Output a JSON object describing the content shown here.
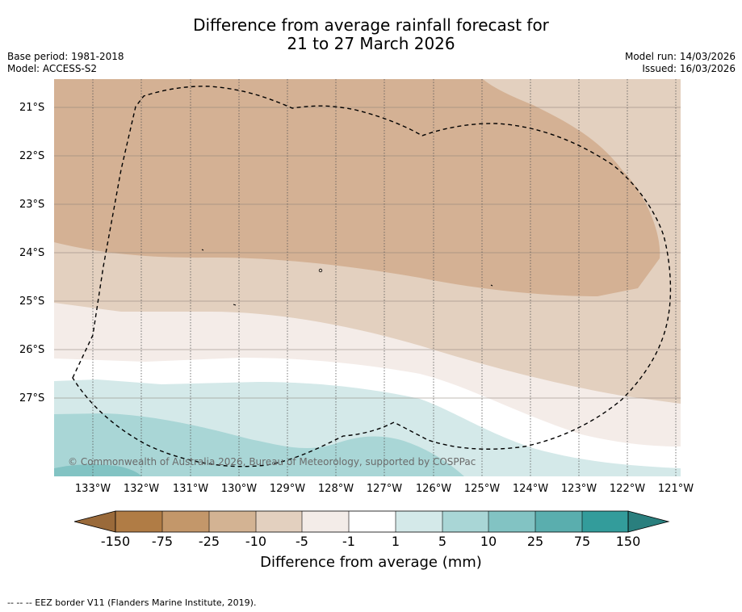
{
  "title": {
    "line1": "Difference from average rainfall forecast for",
    "line2": "21 to 27 March 2026"
  },
  "meta": {
    "base_period": "Base period: 1981-2018",
    "model": "Model: ACCESS-S2",
    "model_run": "Model run: 14/03/2026",
    "issued": "Issued: 16/03/2026"
  },
  "latitude_labels": [
    "21°S",
    "22°S",
    "23°S",
    "24°S",
    "25°S",
    "26°S",
    "27°S"
  ],
  "longitude_labels": [
    "133°W",
    "132°W",
    "131°W",
    "130°W",
    "129°W",
    "128°W",
    "127°W",
    "126°W",
    "125°W",
    "124°W",
    "123°W",
    "122°W",
    "121°W"
  ],
  "colorbar": {
    "title": "Difference from average (mm)",
    "tick_labels": [
      "-150",
      "-75",
      "-25",
      "-10",
      "-5",
      "-1",
      "1",
      "5",
      "10",
      "25",
      "75",
      "150"
    ],
    "colors": [
      "#9a6a3a",
      "#b07c45",
      "#c3976a",
      "#d3b393",
      "#e3d0bf",
      "#f3ece8",
      "#ffffff",
      "#d4e9e9",
      "#a9d6d6",
      "#82c3c3",
      "#5aaeae",
      "#339c9b",
      "#2a7f7e"
    ]
  },
  "copyright": "© Commonwealth of Australia 2026, Bureau of Meteorology, supported by COSPPac",
  "footer": "-- -- -- EEZ border V11 (Flanders Marine Institute, 2019)."
}
